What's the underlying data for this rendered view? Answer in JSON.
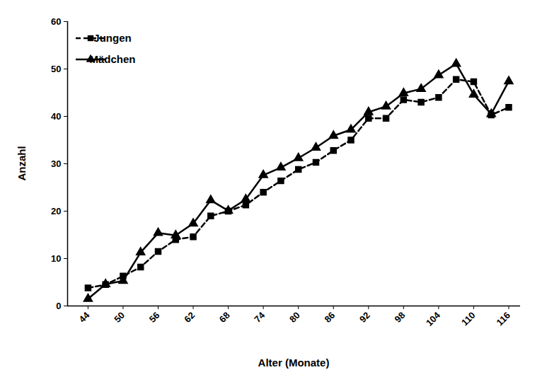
{
  "chart_data": {
    "type": "line",
    "x_label": "Alter (Monate)",
    "y_label": "Anzahl",
    "x": [
      44,
      47,
      50,
      53,
      56,
      59,
      62,
      65,
      68,
      71,
      74,
      77,
      80,
      83,
      86,
      89,
      92,
      95,
      98,
      101,
      104,
      107,
      110,
      113,
      116
    ],
    "series": [
      {
        "name": "Jungen",
        "color": "#000000",
        "marker": "square",
        "line_style": "dashed",
        "values": [
          3.8,
          4.5,
          6.3,
          8.2,
          11.5,
          14,
          14.6,
          19,
          20,
          21.3,
          24,
          26.4,
          28.8,
          30.3,
          32.8,
          35,
          39.6,
          39.6,
          43.5,
          43,
          44,
          47.8,
          47.3,
          40.3,
          41.9
        ]
      },
      {
        "name": "Mädchen",
        "color": "#000000",
        "marker": "triangle",
        "line_style": "solid",
        "values": [
          1.5,
          4.6,
          5.3,
          11.3,
          15.4,
          14.9,
          17.4,
          22.3,
          20.1,
          22.5,
          27.6,
          29.2,
          31.2,
          33.4,
          35.9,
          37.2,
          40.9,
          42.1,
          44.9,
          45.8,
          48.7,
          51.1,
          44.6,
          40.5,
          47.4
        ]
      }
    ],
    "xlim": [
      40.5,
      118
    ],
    "xticks": [
      44,
      50,
      56,
      62,
      68,
      74,
      80,
      86,
      92,
      98,
      104,
      110,
      116
    ],
    "ylim": [
      0,
      60
    ],
    "yticks": [
      0,
      10,
      20,
      30,
      40,
      50,
      60
    ],
    "grid": false,
    "legend": "top-left"
  }
}
